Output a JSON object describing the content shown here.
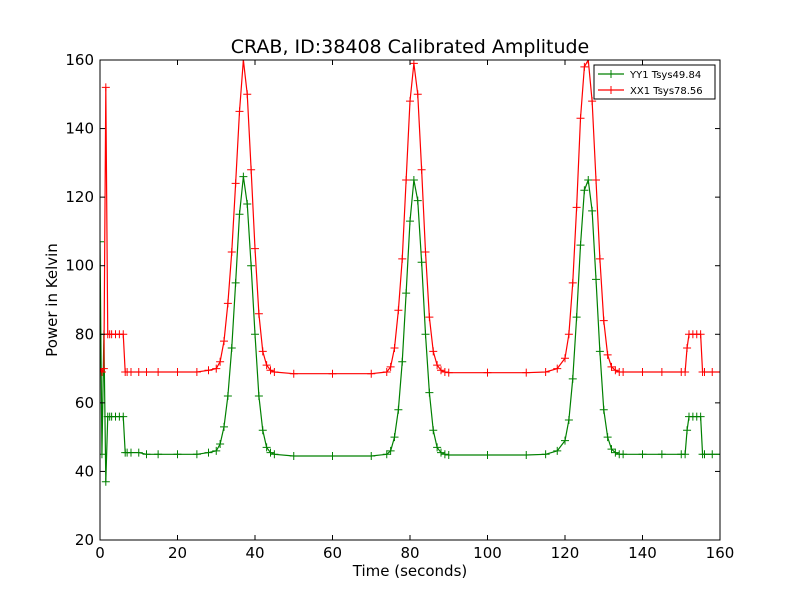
{
  "chart_data": {
    "type": "line",
    "title": "CRAB, ID:38408 Calibrated Amplitude",
    "xlabel": "Time (seconds)",
    "ylabel": "Power in Kelvin",
    "xlim": [
      0,
      160
    ],
    "ylim": [
      20,
      160
    ],
    "xticks": [
      0,
      20,
      40,
      60,
      80,
      100,
      120,
      140,
      160
    ],
    "yticks": [
      20,
      40,
      60,
      80,
      100,
      120,
      140,
      160
    ],
    "grid": false,
    "legend_position": "top-right",
    "marker": "+",
    "series": [
      {
        "name": "YY1 Tsys49.84",
        "color": "#008000",
        "x": [
          0,
          0.5,
          1,
          1.5,
          2,
          2.5,
          3,
          4,
          5,
          6,
          6.5,
          7,
          8,
          10,
          12,
          15,
          20,
          25,
          28,
          30,
          31,
          32,
          33,
          34,
          35,
          36,
          37,
          38,
          39,
          40,
          41,
          42,
          43,
          44,
          45,
          50,
          60,
          70,
          74,
          75,
          76,
          77,
          78,
          79,
          80,
          81,
          82,
          83,
          84,
          85,
          86,
          87,
          88,
          89,
          90,
          100,
          110,
          115,
          118,
          120,
          121,
          122,
          123,
          124,
          125,
          126,
          127,
          128,
          129,
          130,
          131,
          132,
          133,
          134,
          135,
          140,
          145,
          150,
          151,
          151.5,
          152,
          153,
          154,
          155,
          155.5,
          156,
          158,
          160
        ],
        "values": [
          107,
          45,
          80,
          37,
          56,
          56,
          56,
          56,
          56,
          56,
          45.5,
          45.5,
          45.5,
          45.5,
          45,
          45,
          45,
          45,
          45.5,
          46,
          48,
          53,
          62,
          76,
          95,
          115,
          126,
          118,
          100,
          80,
          62,
          52,
          47,
          45.5,
          45,
          44.5,
          44.5,
          44.5,
          45,
          46,
          50,
          58,
          72,
          92,
          113,
          125,
          119,
          101,
          80,
          63,
          52,
          47,
          45.5,
          45,
          44.8,
          44.8,
          44.8,
          45,
          46,
          49,
          55,
          67,
          85,
          106,
          122,
          125,
          116,
          96,
          75,
          58,
          50,
          46.5,
          45.5,
          45,
          45,
          45,
          45,
          45,
          45,
          52,
          56,
          56,
          56,
          56,
          45,
          45,
          45,
          45
        ]
      },
      {
        "name": "XX1 Tsys78.56",
        "color": "#ff0000",
        "x": [
          0,
          0.5,
          1,
          1.5,
          2,
          2.5,
          3,
          4,
          5,
          6,
          6.5,
          7,
          8,
          10,
          12,
          15,
          20,
          25,
          28,
          30,
          31,
          32,
          33,
          34,
          35,
          36,
          37,
          38,
          39,
          40,
          41,
          42,
          43,
          44,
          45,
          50,
          60,
          70,
          74,
          75,
          76,
          77,
          78,
          79,
          80,
          81,
          82,
          83,
          84,
          85,
          86,
          87,
          88,
          89,
          90,
          100,
          110,
          115,
          118,
          120,
          121,
          122,
          123,
          124,
          125,
          126,
          127,
          128,
          129,
          130,
          131,
          132,
          133,
          134,
          135,
          140,
          145,
          150,
          151,
          151.5,
          152,
          153,
          154,
          155,
          155.5,
          156,
          158,
          160
        ],
        "values": [
          70,
          69,
          70,
          152,
          80,
          80,
          80,
          80,
          80,
          80,
          69,
          69,
          69,
          69,
          69,
          69,
          69,
          69,
          69.5,
          70,
          72,
          78,
          89,
          104,
          124,
          145,
          160,
          150,
          128,
          105,
          86,
          75,
          71,
          69.5,
          69,
          68.5,
          68.5,
          68.5,
          69,
          70.5,
          76,
          87,
          102,
          125,
          148,
          159,
          150,
          128,
          104,
          85,
          75,
          71,
          69.5,
          69,
          68.8,
          68.8,
          68.8,
          69,
          70,
          73,
          80,
          95,
          117,
          143,
          158,
          160,
          148,
          125,
          102,
          84,
          74,
          70.5,
          69.5,
          69,
          69,
          69,
          69,
          69,
          69,
          76,
          80,
          80,
          80,
          80,
          69,
          69,
          69,
          69
        ]
      }
    ]
  }
}
